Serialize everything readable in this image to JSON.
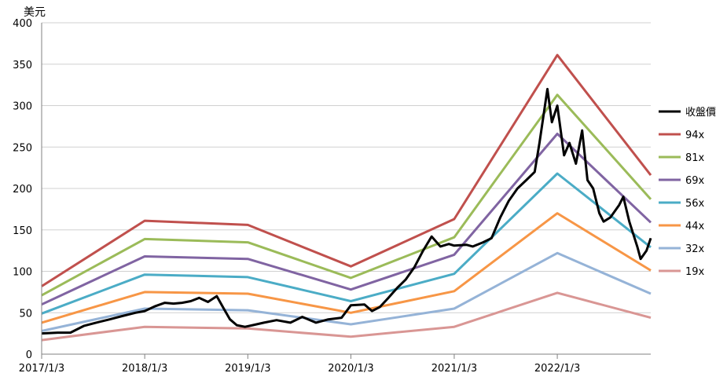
{
  "chart_data": {
    "type": "line",
    "y_unit_label": "美元",
    "ylim": [
      0,
      400
    ],
    "y_ticks": [
      0,
      50,
      100,
      150,
      200,
      250,
      300,
      350,
      400
    ],
    "x_ticks": [
      "2017/1/3",
      "2018/1/3",
      "2019/1/3",
      "2020/1/3",
      "2021/1/3",
      "2022/1/3"
    ],
    "x_range": [
      "2017/1/3",
      "2022/11/30"
    ],
    "grid": "horizontal",
    "legend_position": "right",
    "series": [
      {
        "name": "收盤價",
        "color": "#000000",
        "x": [
          "2017/1/3",
          "2017/3/1",
          "2017/4/15",
          "2017/6/1",
          "2017/7/15",
          "2017/9/1",
          "2017/10/15",
          "2017/12/1",
          "2018/1/3",
          "2018/2/10",
          "2018/3/15",
          "2018/4/15",
          "2018/5/15",
          "2018/6/15",
          "2018/7/15",
          "2018/8/15",
          "2018/9/15",
          "2018/10/10",
          "2018/11/1",
          "2018/11/25",
          "2018/12/24",
          "2019/1/20",
          "2019/3/1",
          "2019/4/15",
          "2019/6/3",
          "2019/7/15",
          "2019/9/1",
          "2019/10/15",
          "2019/12/1",
          "2020/1/3",
          "2020/2/20",
          "2020/3/18",
          "2020/4/15",
          "2020/5/15",
          "2020/6/15",
          "2020/7/15",
          "2020/8/15",
          "2020/9/15",
          "2020/10/15",
          "2020/11/15",
          "2020/12/15",
          "2021/1/3",
          "2021/2/15",
          "2021/3/10",
          "2021/4/15",
          "2021/5/15",
          "2021/6/15",
          "2021/7/15",
          "2021/8/15",
          "2021/9/15",
          "2021/10/15",
          "2021/11/1",
          "2021/11/29",
          "2021/12/15",
          "2022/1/3",
          "2022/1/27",
          "2022/2/15",
          "2022/3/10",
          "2022/4/1",
          "2022/4/20",
          "2022/5/10",
          "2022/6/1",
          "2022/6/16",
          "2022/7/10",
          "2022/8/10",
          "2022/8/25",
          "2022/9/15",
          "2022/10/13",
          "2022/10/25",
          "2022/11/15",
          "2022/11/30"
        ],
        "values": [
          25,
          26,
          26,
          34,
          38,
          42,
          46,
          50,
          52,
          58,
          62,
          61,
          62,
          64,
          68,
          63,
          70,
          55,
          42,
          35,
          33,
          35,
          38,
          41,
          38,
          45,
          38,
          42,
          44,
          59,
          60,
          52,
          57,
          68,
          80,
          90,
          105,
          125,
          142,
          130,
          133,
          131,
          132,
          130,
          135,
          140,
          165,
          185,
          200,
          210,
          220,
          255,
          320,
          280,
          300,
          240,
          255,
          230,
          270,
          210,
          200,
          170,
          160,
          165,
          180,
          190,
          160,
          130,
          115,
          125,
          140
        ]
      },
      {
        "name": "94x",
        "color": "#c0504d",
        "x": [
          "2017/1/3",
          "2018/1/3",
          "2019/1/3",
          "2020/1/3",
          "2021/1/3",
          "2022/1/3",
          "2022/11/30"
        ],
        "values": [
          82,
          161,
          156,
          106,
          163,
          361,
          216
        ]
      },
      {
        "name": "81x",
        "color": "#9bbb59",
        "x": [
          "2017/1/3",
          "2018/1/3",
          "2019/1/3",
          "2020/1/3",
          "2021/1/3",
          "2022/1/3",
          "2022/11/30"
        ],
        "values": [
          71,
          139,
          135,
          92,
          141,
          313,
          187
        ]
      },
      {
        "name": "69x",
        "color": "#8064a2",
        "x": [
          "2017/1/3",
          "2018/1/3",
          "2019/1/3",
          "2020/1/3",
          "2021/1/3",
          "2022/1/3",
          "2022/11/30"
        ],
        "values": [
          60,
          118,
          115,
          78,
          120,
          266,
          159
        ]
      },
      {
        "name": "56x",
        "color": "#4bacc6",
        "x": [
          "2017/1/3",
          "2018/1/3",
          "2019/1/3",
          "2020/1/3",
          "2021/1/3",
          "2022/1/3",
          "2022/11/30"
        ],
        "values": [
          49,
          96,
          93,
          64,
          97,
          218,
          129
        ]
      },
      {
        "name": "44x",
        "color": "#f79646",
        "x": [
          "2017/1/3",
          "2018/1/3",
          "2019/1/3",
          "2020/1/3",
          "2021/1/3",
          "2022/1/3",
          "2022/11/30"
        ],
        "values": [
          38,
          75,
          73,
          50,
          76,
          170,
          101
        ]
      },
      {
        "name": "32x",
        "color": "#95b3d7",
        "x": [
          "2017/1/3",
          "2018/1/3",
          "2019/1/3",
          "2020/1/3",
          "2021/1/3",
          "2022/1/3",
          "2022/11/30"
        ],
        "values": [
          28,
          55,
          53,
          36,
          55,
          122,
          73
        ]
      },
      {
        "name": "19x",
        "color": "#d99694",
        "x": [
          "2017/1/3",
          "2018/1/3",
          "2019/1/3",
          "2020/1/3",
          "2021/1/3",
          "2022/1/3",
          "2022/11/30"
        ],
        "values": [
          17,
          33,
          31,
          21,
          33,
          74,
          44
        ]
      }
    ]
  }
}
